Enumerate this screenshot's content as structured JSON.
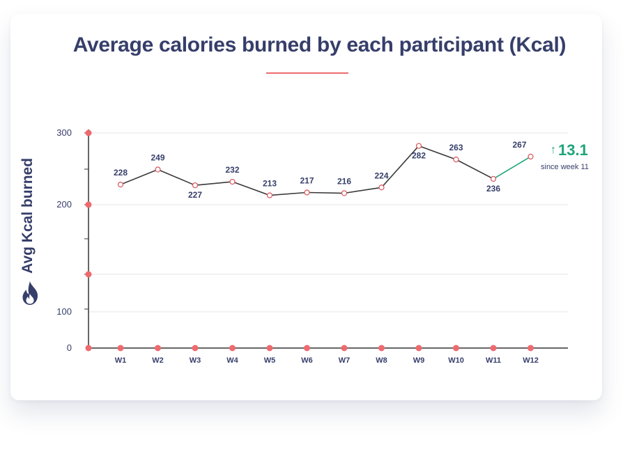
{
  "chart_data": {
    "type": "line",
    "title": "Average calories burned by each participant (Kcal)",
    "ylabel": "Avg Kcal burned",
    "xlabel": "",
    "categories": [
      "W1",
      "W2",
      "W3",
      "W4",
      "W5",
      "W6",
      "W7",
      "W8",
      "W9",
      "W10",
      "W11",
      "W12"
    ],
    "series": [
      {
        "name": "Avg Kcal burned",
        "values": [
          228,
          249,
          227,
          232,
          213,
          217,
          216,
          224,
          282,
          263,
          236,
          267
        ]
      }
    ],
    "yticks": [
      "0",
      "100",
      "200",
      "300"
    ],
    "ylim": [
      0,
      300
    ],
    "grid": true,
    "highlight": {
      "from": "W11",
      "to": "W12",
      "color": "#1fa57a"
    },
    "change": {
      "arrow": "↑",
      "value": "13.1",
      "caption": "since week 11"
    }
  },
  "colors": {
    "title": "#363e6a",
    "line": "#3a3a3a",
    "accent": "#ee6a6e",
    "positive": "#1fa57a",
    "grid": "#e4e4e4"
  },
  "icons": {
    "ylabel_icon": "flame-icon"
  }
}
